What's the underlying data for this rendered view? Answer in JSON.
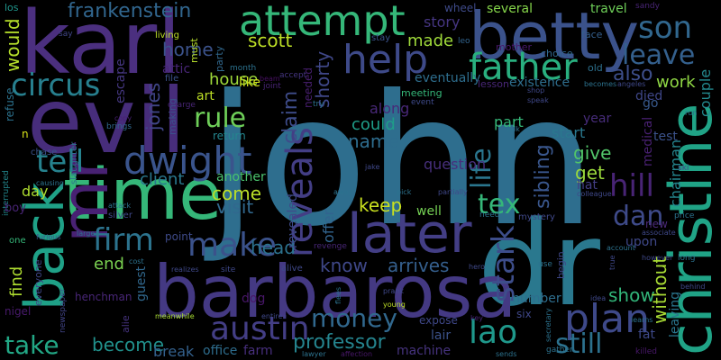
{
  "words": [
    {
      "text": "john",
      "color": "#2e6e8e"
    },
    {
      "text": "dr",
      "color": "#2a788e"
    },
    {
      "text": "karl",
      "color": "#4b2f7f"
    },
    {
      "text": "evil",
      "color": "#472d7b"
    },
    {
      "text": "barbarosa",
      "color": "#443983"
    },
    {
      "text": "christine",
      "color": "#20a386"
    },
    {
      "text": "betty",
      "color": "#3b528b"
    },
    {
      "text": "time",
      "color": "#35b779"
    },
    {
      "text": "back",
      "color": "#1fa187"
    },
    {
      "text": "later",
      "color": "#433e85"
    },
    {
      "text": "mr",
      "color": "#482173"
    },
    {
      "text": "attempt",
      "color": "#35b779"
    },
    {
      "text": "father",
      "color": "#29af7f"
    },
    {
      "text": "help",
      "color": "#3e4a89"
    },
    {
      "text": "austin",
      "color": "#433e85"
    },
    {
      "text": "plan",
      "color": "#3e4989"
    },
    {
      "text": "dwight",
      "color": "#3a548c"
    },
    {
      "text": "frankenstein",
      "color": "#31668e"
    },
    {
      "text": "son",
      "color": "#31678e"
    },
    {
      "text": "leave",
      "color": "#34608d"
    },
    {
      "text": "reveals",
      "color": "#433e85"
    },
    {
      "text": "hill",
      "color": "#482475"
    },
    {
      "text": "money",
      "color": "#31688e"
    },
    {
      "text": "lao",
      "color": "#1f988b"
    },
    {
      "text": "tell",
      "color": "#26828e"
    },
    {
      "text": "circus",
      "color": "#277f8e"
    },
    {
      "text": "firm",
      "color": "#2c738e"
    },
    {
      "text": "make",
      "color": "#3b528b"
    },
    {
      "text": "rule",
      "color": "#6ece58"
    },
    {
      "text": "tex",
      "color": "#35b779"
    },
    {
      "text": "dan",
      "color": "#3e4a89"
    },
    {
      "text": "still",
      "color": "#2c718e"
    },
    {
      "text": "take",
      "color": "#22a785"
    },
    {
      "text": "professor",
      "color": "#25848e"
    },
    {
      "text": "stark",
      "color": "#3d4d8a"
    },
    {
      "text": "life",
      "color": "#2a768e"
    },
    {
      "text": "work",
      "color": "#8fd744"
    },
    {
      "text": "house",
      "color": "#9fda3a"
    },
    {
      "text": "scott",
      "color": "#bddf26"
    },
    {
      "text": "home",
      "color": "#3b528b"
    },
    {
      "text": "shorty",
      "color": "#3f4788"
    },
    {
      "text": "would",
      "color": "#b5de2b"
    },
    {
      "text": "jones",
      "color": "#404688"
    },
    {
      "text": "claim",
      "color": "#3e4c8a"
    },
    {
      "text": "name",
      "color": "#2e6d8e"
    },
    {
      "text": "keep",
      "color": "#cae11f"
    },
    {
      "text": "arrives",
      "color": "#355f8d"
    },
    {
      "text": "know",
      "color": "#3f4889"
    },
    {
      "text": "head",
      "color": "#2c728e"
    },
    {
      "text": "become",
      "color": "#21918c"
    },
    {
      "text": "give",
      "color": "#52c569"
    },
    {
      "text": "get",
      "color": "#9bd93c"
    },
    {
      "text": "visit",
      "color": "#31688e"
    },
    {
      "text": "come",
      "color": "#bade28"
    },
    {
      "text": "end",
      "color": "#7ad151"
    },
    {
      "text": "show",
      "color": "#32b67a"
    },
    {
      "text": "without",
      "color": "#a8db34"
    },
    {
      "text": "sibling",
      "color": "#39568c"
    },
    {
      "text": "client",
      "color": "#2a788e"
    },
    {
      "text": "made",
      "color": "#9fda3a"
    },
    {
      "text": "story",
      "color": "#453581"
    },
    {
      "text": "along",
      "color": "#482878"
    },
    {
      "text": "could",
      "color": "#1f9e89"
    },
    {
      "text": "also",
      "color": "#3d4e8a"
    },
    {
      "text": "part",
      "color": "#35b779"
    },
    {
      "text": "start",
      "color": "#2a788e"
    },
    {
      "text": "question",
      "color": "#472f7d"
    },
    {
      "text": "day",
      "color": "#addc30"
    },
    {
      "text": "find",
      "color": "#addc30"
    },
    {
      "text": "eventually",
      "color": "#2e6e8e"
    },
    {
      "text": "existence",
      "color": "#2e6e8e"
    },
    {
      "text": "couple",
      "color": "#23898e"
    },
    {
      "text": "died",
      "color": "#3f4788"
    },
    {
      "text": "go",
      "color": "#38598c"
    },
    {
      "text": "year",
      "color": "#472c7a"
    },
    {
      "text": "test",
      "color": "#3b528b"
    },
    {
      "text": "medical",
      "color": "#482071"
    },
    {
      "text": "chairman",
      "color": "#24868e"
    },
    {
      "text": "fat",
      "color": "#3e4989"
    },
    {
      "text": "hat",
      "color": "#433e85"
    },
    {
      "text": "offer",
      "color": "#32648e"
    },
    {
      "text": "revealed",
      "color": "#3e4a89"
    },
    {
      "text": "another",
      "color": "#4ac16d"
    },
    {
      "text": "break",
      "color": "#34618d"
    },
    {
      "text": "office",
      "color": "#2e6d8e"
    },
    {
      "text": "farm",
      "color": "#472f7d"
    },
    {
      "text": "lair",
      "color": "#3b528b"
    },
    {
      "text": "machine",
      "color": "#46337f"
    },
    {
      "text": "several",
      "color": "#85d54a"
    },
    {
      "text": "travel",
      "color": "#6ece58"
    },
    {
      "text": "wheel",
      "color": "#3e4a89"
    },
    {
      "text": "escape",
      "color": "#453781"
    },
    {
      "text": "attic",
      "color": "#482677"
    },
    {
      "text": "art",
      "color": "#bddf26"
    },
    {
      "text": "return",
      "color": "#24868e"
    },
    {
      "text": "like",
      "color": "#d0e11c"
    },
    {
      "text": "needed",
      "color": "#481f70"
    },
    {
      "text": "refuse",
      "color": "#2c728e"
    },
    {
      "text": "point",
      "color": "#3e4a89"
    },
    {
      "text": "guest",
      "color": "#31688e"
    },
    {
      "text": "upon",
      "color": "#3f4889"
    },
    {
      "text": "new",
      "color": "#4c2a7a"
    },
    {
      "text": "well",
      "color": "#75d054"
    },
    {
      "text": "number",
      "color": "#2e6e8e"
    },
    {
      "text": "nigel",
      "color": "#481a6c"
    },
    {
      "text": "henchman",
      "color": "#482677"
    },
    {
      "text": "dog",
      "color": "#481769"
    },
    {
      "text": "six",
      "color": "#3f4788"
    },
    {
      "text": "expose",
      "color": "#3f4889"
    },
    {
      "text": "leaving",
      "color": "#2a768e"
    },
    {
      "text": "meeting",
      "color": "#35b779"
    },
    {
      "text": "lesson",
      "color": "#482677"
    },
    {
      "text": "mother",
      "color": "#48186a"
    },
    {
      "text": "choice",
      "color": "#31688e"
    },
    {
      "text": "face",
      "color": "#355f8d"
    },
    {
      "text": "old",
      "color": "#2d708e"
    },
    {
      "text": "sandy",
      "color": "#482475"
    },
    {
      "text": "los",
      "color": "#1f958b"
    },
    {
      "text": "say",
      "color": "#404688"
    },
    {
      "text": "living",
      "color": "#bddf26"
    },
    {
      "text": "must",
      "color": "#b5de2b"
    },
    {
      "text": "party",
      "color": "#31688e"
    },
    {
      "text": "month",
      "color": "#2c728e"
    },
    {
      "text": "accept",
      "color": "#453581"
    },
    {
      "text": "joint",
      "color": "#482475"
    },
    {
      "text": "beam",
      "color": "#471063"
    },
    {
      "text": "stay",
      "color": "#3b528b"
    },
    {
      "text": "leo",
      "color": "#32648e"
    },
    {
      "text": "event",
      "color": "#3e4a89"
    },
    {
      "text": "file",
      "color": "#3b528b"
    },
    {
      "text": "charge",
      "color": "#482576"
    },
    {
      "text": "making",
      "color": "#3b528b"
    },
    {
      "text": "brings",
      "color": "#31688e"
    },
    {
      "text": "copy",
      "color": "#482173"
    },
    {
      "text": "chase",
      "color": "#3b528b"
    },
    {
      "text": "slaughter",
      "color": "#2c728e"
    },
    {
      "text": "causing",
      "color": "#2c728e"
    },
    {
      "text": "interrupted",
      "color": "#23888e"
    },
    {
      "text": "boy",
      "color": "#482475"
    },
    {
      "text": "attack",
      "color": "#2c728e"
    },
    {
      "text": "silver",
      "color": "#3f4889"
    },
    {
      "text": "one",
      "color": "#35b779"
    },
    {
      "text": "furious",
      "color": "#3b528b"
    },
    {
      "text": "large",
      "color": "#2c728e"
    },
    {
      "text": "everyone",
      "color": "#3f4788"
    },
    {
      "text": "newspaper",
      "color": "#414487"
    },
    {
      "text": "alie",
      "color": "#46337f"
    },
    {
      "text": "meanwhile",
      "color": "#a8db34"
    },
    {
      "text": "entire",
      "color": "#3f4889"
    },
    {
      "text": "lawyer",
      "color": "#2c728e"
    },
    {
      "text": "affection",
      "color": "#481769"
    },
    {
      "text": "young",
      "color": "#bddf26"
    },
    {
      "text": "prank",
      "color": "#3f4889"
    },
    {
      "text": "flees",
      "color": "#2c728e"
    },
    {
      "text": "realizes",
      "color": "#3f4889"
    },
    {
      "text": "site",
      "color": "#3f4889"
    },
    {
      "text": "alive",
      "color": "#3f4889"
    },
    {
      "text": "revenge",
      "color": "#482677"
    },
    {
      "text": "hero",
      "color": "#3f4889"
    },
    {
      "text": "sends",
      "color": "#2c728e"
    },
    {
      "text": "gather",
      "color": "#2c728e"
    },
    {
      "text": "killed",
      "color": "#48186a"
    },
    {
      "text": "secretary",
      "color": "#2c728e"
    },
    {
      "text": "idea",
      "color": "#3f4889"
    },
    {
      "text": "true",
      "color": "#3f4889"
    },
    {
      "text": "account",
      "color": "#2c728e"
    },
    {
      "text": "however",
      "color": "#3f4889"
    },
    {
      "text": "long",
      "color": "#2c728e"
    },
    {
      "text": "behind",
      "color": "#3f4889"
    },
    {
      "text": "learns",
      "color": "#2c728e"
    },
    {
      "text": "associate",
      "color": "#3f4889"
    },
    {
      "text": "price",
      "color": "#2c728e"
    },
    {
      "text": "ski",
      "color": "#3f4889"
    },
    {
      "text": "colleague",
      "color": "#3f4889"
    },
    {
      "text": "partially",
      "color": "#3f4889"
    },
    {
      "text": "pick",
      "color": "#2c728e"
    },
    {
      "text": "away",
      "color": "#2c728e"
    },
    {
      "text": "mystery",
      "color": "#3f4889"
    },
    {
      "text": "need",
      "color": "#2c728e"
    },
    {
      "text": "use",
      "color": "#2c728e"
    },
    {
      "text": "jake",
      "color": "#3f4889"
    },
    {
      "text": "talk",
      "color": "#2c728e"
    },
    {
      "text": "speak",
      "color": "#3f4889"
    },
    {
      "text": "shop",
      "color": "#3f4889"
    },
    {
      "text": "run",
      "color": "#2c728e"
    },
    {
      "text": "becomes",
      "color": "#2c728e"
    },
    {
      "text": "angeles",
      "color": "#3f4889"
    },
    {
      "text": "try",
      "color": "#2c728e"
    },
    {
      "text": "cost",
      "color": "#2c728e"
    },
    {
      "text": "begin",
      "color": "#3f4889"
    },
    {
      "text": "n",
      "color": "#d8e219"
    },
    {
      "text": "key",
      "color": "#482677"
    }
  ]
}
